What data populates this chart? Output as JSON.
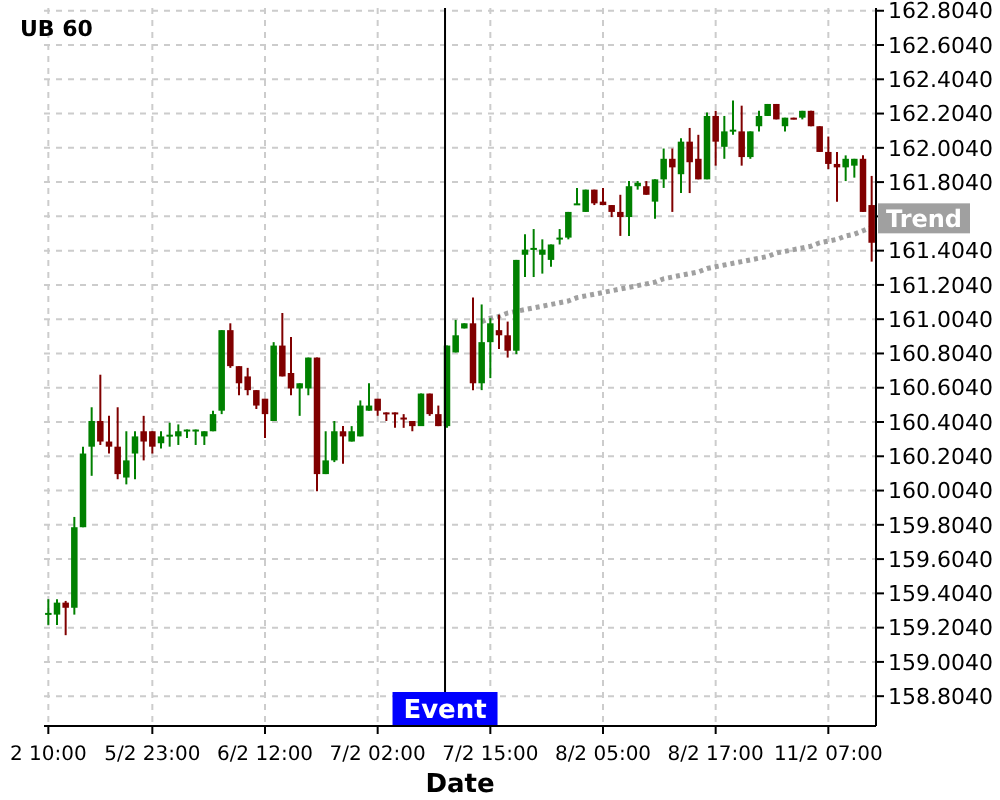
{
  "chart_data": {
    "type": "candlestick",
    "title": "UB 60",
    "xlabel": "Date",
    "categories": [
      "2 10:00",
      null,
      null,
      null,
      null,
      null,
      null,
      null,
      null,
      null,
      null,
      null,
      "5/2 23:00",
      null,
      null,
      null,
      null,
      null,
      null,
      null,
      null,
      null,
      null,
      null,
      null,
      "6/2 12:00",
      null,
      null,
      null,
      null,
      null,
      null,
      null,
      null,
      null,
      null,
      null,
      null,
      "7/2 02:00",
      null,
      null,
      null,
      null,
      null,
      null,
      null,
      null,
      null,
      null,
      null,
      null,
      "7/2 15:00",
      null,
      null,
      null,
      null,
      null,
      null,
      null,
      null,
      null,
      null,
      null,
      null,
      "8/2 05:00",
      null,
      null,
      null,
      null,
      null,
      null,
      null,
      null,
      null,
      null,
      null,
      null,
      "8/2 17:00",
      null,
      null,
      null,
      null,
      null,
      null,
      null,
      null,
      null,
      null,
      null,
      null,
      "11/2 07:00",
      null,
      null,
      null,
      null,
      null
    ],
    "ohlc": [
      [
        159.28,
        159.37,
        159.22,
        159.29
      ],
      [
        159.28,
        159.37,
        159.22,
        159.35
      ],
      [
        159.35,
        159.36,
        159.16,
        159.32
      ],
      [
        159.32,
        159.85,
        159.28,
        159.79
      ],
      [
        159.79,
        160.26,
        159.79,
        160.22
      ],
      [
        160.26,
        160.49,
        160.09,
        160.41
      ],
      [
        160.41,
        160.68,
        160.27,
        160.29
      ],
      [
        160.29,
        160.44,
        160.22,
        160.26
      ],
      [
        160.26,
        160.49,
        160.07,
        160.1
      ],
      [
        160.08,
        160.35,
        160.04,
        160.18
      ],
      [
        160.22,
        160.35,
        160.07,
        160.32
      ],
      [
        160.35,
        160.44,
        160.18,
        160.29
      ],
      [
        160.35,
        160.35,
        160.22,
        160.26
      ],
      [
        160.28,
        160.35,
        160.25,
        160.32
      ],
      [
        160.32,
        160.4,
        160.26,
        160.33
      ],
      [
        160.32,
        160.39,
        160.27,
        160.35
      ],
      [
        160.35,
        160.36,
        160.31,
        160.36
      ],
      [
        160.35,
        160.36,
        160.27,
        160.36
      ],
      [
        160.32,
        160.35,
        160.27,
        160.35
      ],
      [
        160.35,
        160.47,
        160.35,
        160.45
      ],
      [
        160.47,
        160.94,
        160.45,
        160.94
      ],
      [
        160.94,
        160.98,
        160.72,
        160.73
      ],
      [
        160.73,
        160.73,
        160.56,
        160.63
      ],
      [
        160.67,
        160.72,
        160.56,
        160.59
      ],
      [
        160.59,
        160.59,
        160.48,
        160.5
      ],
      [
        160.54,
        160.54,
        160.31,
        160.45
      ],
      [
        160.41,
        160.87,
        160.41,
        160.85
      ],
      [
        160.85,
        161.04,
        160.67,
        160.67
      ],
      [
        160.69,
        160.9,
        160.56,
        160.6
      ],
      [
        160.6,
        160.63,
        160.44,
        160.63
      ],
      [
        160.6,
        160.78,
        160.56,
        160.78
      ],
      [
        160.78,
        160.78,
        160.0,
        160.1
      ],
      [
        160.1,
        160.35,
        160.1,
        160.18
      ],
      [
        160.18,
        160.41,
        160.17,
        160.35
      ],
      [
        160.35,
        160.38,
        160.16,
        160.32
      ],
      [
        160.29,
        160.38,
        160.29,
        160.35
      ],
      [
        160.32,
        160.53,
        160.32,
        160.5
      ],
      [
        160.47,
        160.63,
        160.47,
        160.5
      ],
      [
        160.54,
        160.54,
        160.44,
        160.47
      ],
      [
        160.46,
        160.46,
        160.41,
        160.45
      ],
      [
        160.46,
        160.46,
        160.37,
        160.45
      ],
      [
        160.43,
        160.45,
        160.37,
        160.42
      ],
      [
        160.41,
        160.41,
        160.35,
        160.38
      ],
      [
        160.38,
        160.57,
        160.38,
        160.57
      ],
      [
        160.57,
        160.57,
        160.44,
        160.45
      ],
      [
        160.45,
        160.5,
        160.38,
        160.38
      ],
      [
        160.38,
        160.85,
        160.37,
        160.85
      ],
      [
        160.81,
        161.0,
        160.81,
        160.91
      ],
      [
        160.95,
        160.98,
        160.95,
        160.98
      ],
      [
        160.98,
        161.13,
        160.59,
        160.63
      ],
      [
        160.63,
        161.09,
        160.59,
        160.87
      ],
      [
        160.87,
        161.01,
        160.66,
        160.98
      ],
      [
        160.94,
        161.03,
        160.83,
        160.91
      ],
      [
        160.91,
        160.99,
        160.78,
        160.82
      ],
      [
        160.82,
        161.35,
        160.8,
        161.35
      ],
      [
        161.38,
        161.5,
        161.25,
        161.41
      ],
      [
        161.41,
        161.53,
        161.25,
        161.42
      ],
      [
        161.38,
        161.47,
        161.27,
        161.41
      ],
      [
        161.35,
        161.44,
        161.31,
        161.44
      ],
      [
        161.47,
        161.53,
        161.44,
        161.48
      ],
      [
        161.48,
        161.63,
        161.47,
        161.63
      ],
      [
        161.67,
        161.77,
        161.67,
        161.68
      ],
      [
        161.63,
        161.76,
        161.63,
        161.76
      ],
      [
        161.76,
        161.76,
        161.67,
        161.68
      ],
      [
        161.69,
        161.77,
        161.67,
        161.67
      ],
      [
        161.67,
        161.67,
        161.6,
        161.63
      ],
      [
        161.63,
        161.73,
        161.49,
        161.6
      ],
      [
        161.6,
        161.81,
        161.49,
        161.78
      ],
      [
        161.78,
        161.81,
        161.76,
        161.8
      ],
      [
        161.78,
        161.81,
        161.73,
        161.73
      ],
      [
        161.69,
        161.82,
        161.59,
        161.82
      ],
      [
        161.82,
        162.0,
        161.77,
        161.94
      ],
      [
        161.94,
        162.0,
        161.63,
        161.89
      ],
      [
        161.85,
        162.06,
        161.74,
        162.04
      ],
      [
        162.04,
        162.12,
        161.74,
        161.92
      ],
      [
        161.94,
        162.08,
        161.82,
        161.82
      ],
      [
        161.82,
        162.21,
        161.82,
        162.19
      ],
      [
        162.19,
        162.22,
        161.9,
        162.04
      ],
      [
        162.01,
        162.19,
        161.94,
        162.1
      ],
      [
        162.1,
        162.28,
        162.08,
        162.11
      ],
      [
        162.1,
        162.25,
        161.9,
        161.95
      ],
      [
        161.95,
        162.1,
        161.94,
        162.1
      ],
      [
        162.13,
        162.22,
        162.1,
        162.19
      ],
      [
        162.19,
        162.26,
        162.19,
        162.26
      ],
      [
        162.26,
        162.26,
        162.17,
        162.17
      ],
      [
        162.13,
        162.18,
        162.1,
        162.18
      ],
      [
        162.18,
        162.18,
        162.17,
        162.17
      ],
      [
        162.18,
        162.22,
        162.17,
        162.22
      ],
      [
        162.22,
        162.22,
        162.13,
        162.13
      ],
      [
        162.13,
        162.13,
        161.98,
        161.98
      ],
      [
        161.98,
        162.07,
        161.88,
        161.91
      ],
      [
        161.91,
        161.98,
        161.69,
        161.89
      ],
      [
        161.89,
        161.96,
        161.81,
        161.94
      ],
      [
        161.9,
        161.94,
        161.83,
        161.94
      ],
      [
        161.94,
        161.96,
        161.63,
        161.63
      ],
      [
        161.67,
        161.84,
        161.34,
        161.45
      ]
    ],
    "colors": [
      "#008000",
      "#008000",
      "#800000",
      "#008000",
      "#008000",
      "#008000",
      "#800000",
      "#800000",
      "#800000",
      "#008000",
      "#008000",
      "#800000",
      "#800000",
      "#008000",
      "#008000",
      "#008000",
      "#008000",
      "#008000",
      "#008000",
      "#008000",
      "#008000",
      "#800000",
      "#800000",
      "#800000",
      "#800000",
      "#800000",
      "#008000",
      "#800000",
      "#800000",
      "#008000",
      "#008000",
      "#800000",
      "#008000",
      "#008000",
      "#800000",
      "#008000",
      "#008000",
      "#008000",
      "#800000",
      "#800000",
      "#800000",
      "#800000",
      "#800000",
      "#008000",
      "#800000",
      "#800000",
      "#008000",
      "#008000",
      "#008000",
      "#800000",
      "#008000",
      "#008000",
      "#800000",
      "#800000",
      "#008000",
      "#008000",
      "#008000",
      "#008000",
      "#008000",
      "#008000",
      "#008000",
      "#008000",
      "#008000",
      "#800000",
      "#800000",
      "#800000",
      "#800000",
      "#008000",
      "#008000",
      "#800000",
      "#008000",
      "#008000",
      "#800000",
      "#008000",
      "#800000",
      "#800000",
      "#008000",
      "#800000",
      "#008000",
      "#008000",
      "#800000",
      "#008000",
      "#008000",
      "#008000",
      "#800000",
      "#008000",
      "#800000",
      "#008000",
      "#800000",
      "#800000",
      "#800000",
      "#800000",
      "#008000",
      "#008000",
      "#800000",
      "#800000"
    ],
    "series": [
      {
        "name": "Trend",
        "type": "line",
        "color": "#a0a0a0",
        "line_style": "dotted",
        "values": [
          null,
          null,
          null,
          null,
          null,
          null,
          null,
          null,
          null,
          null,
          null,
          null,
          null,
          null,
          null,
          null,
          null,
          null,
          null,
          null,
          null,
          null,
          null,
          null,
          null,
          null,
          null,
          null,
          null,
          null,
          null,
          null,
          null,
          null,
          null,
          null,
          null,
          null,
          null,
          null,
          null,
          null,
          null,
          null,
          null,
          null,
          null,
          null,
          null,
          null,
          160.99,
          161.01,
          161.02,
          161.04,
          161.05,
          161.06,
          161.07,
          161.08,
          161.09,
          161.1,
          161.11,
          161.13,
          161.14,
          161.15,
          161.16,
          161.17,
          161.18,
          161.19,
          161.2,
          161.21,
          161.22,
          161.24,
          161.25,
          161.26,
          161.27,
          161.28,
          161.3,
          161.31,
          161.32,
          161.33,
          161.34,
          161.35,
          161.36,
          161.37,
          161.39,
          161.4,
          161.41,
          161.42,
          161.43,
          161.45,
          161.46,
          161.47,
          161.49,
          161.5,
          161.52,
          161.54
        ]
      }
    ],
    "ylim": [
      158.63,
      162.82
    ],
    "yticks": [
      {
        "value": 158.804,
        "label": "158.8040"
      },
      {
        "value": 159.004,
        "label": "159.0040"
      },
      {
        "value": 159.204,
        "label": "159.2040"
      },
      {
        "value": 159.404,
        "label": "159.4040"
      },
      {
        "value": 159.604,
        "label": "159.6040"
      },
      {
        "value": 159.804,
        "label": "159.8040"
      },
      {
        "value": 160.004,
        "label": "160.0040"
      },
      {
        "value": 160.204,
        "label": "160.2040"
      },
      {
        "value": 160.404,
        "label": "160.4040"
      },
      {
        "value": 160.604,
        "label": "160.6040"
      },
      {
        "value": 160.804,
        "label": "160.8040"
      },
      {
        "value": 161.004,
        "label": "161.0040"
      },
      {
        "value": 161.204,
        "label": "161.2040"
      },
      {
        "value": 161.404,
        "label": "161.4040"
      },
      {
        "value": 161.604,
        "label": null
      },
      {
        "value": 161.804,
        "label": "161.8040"
      },
      {
        "value": 162.004,
        "label": "162.0040"
      },
      {
        "value": 162.204,
        "label": "162.2040"
      },
      {
        "value": 162.404,
        "label": "162.4040"
      },
      {
        "value": 162.604,
        "label": "162.6040"
      },
      {
        "value": 162.804,
        "label": "162.8040"
      }
    ],
    "annotations": [
      "Event"
    ],
    "grid": true
  }
}
